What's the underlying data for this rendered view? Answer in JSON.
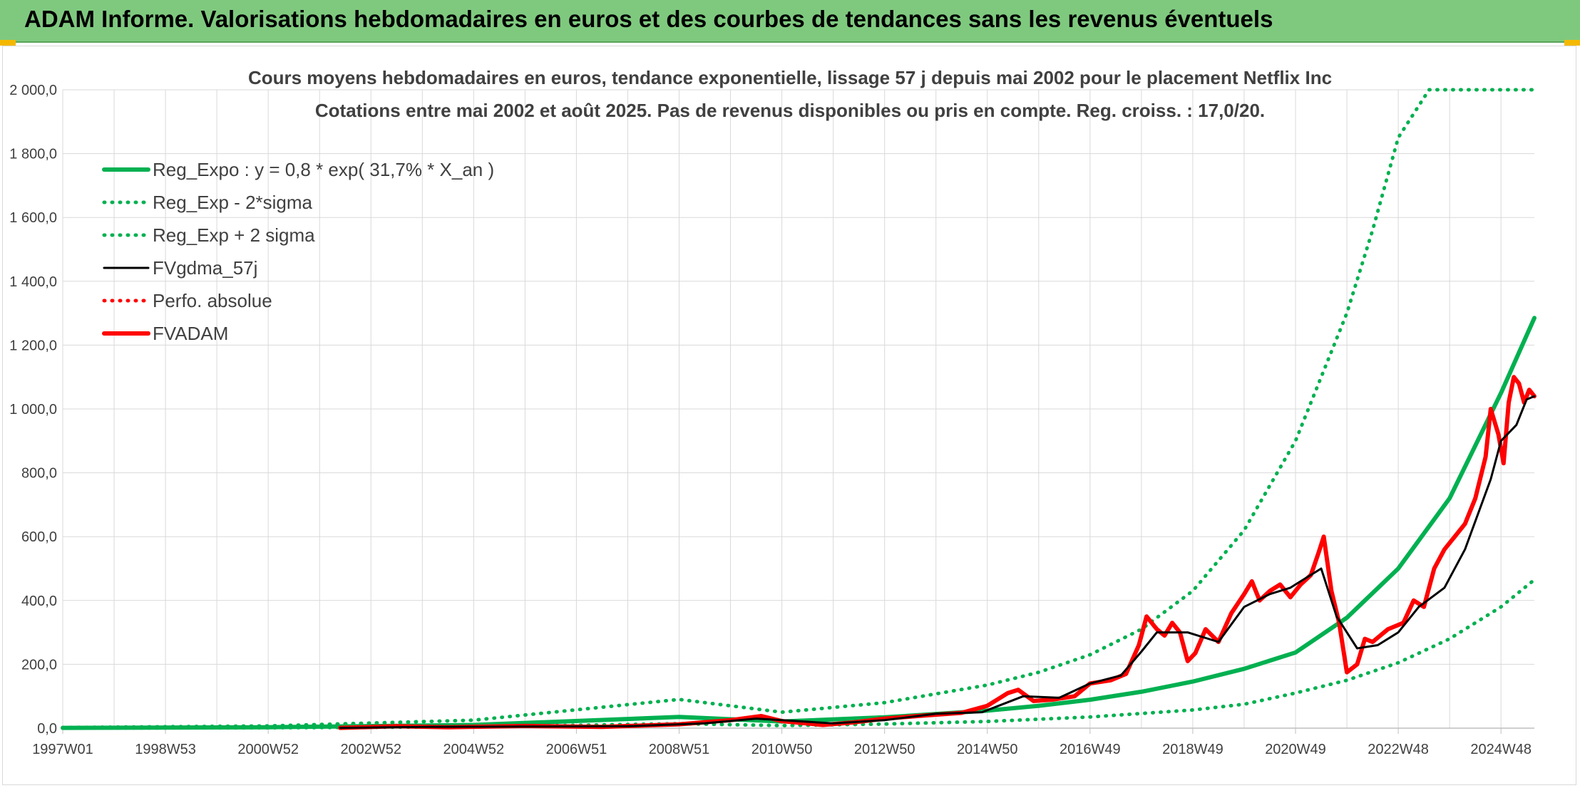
{
  "banner": {
    "title": "ADAM Informe. Valorisations hebdomadaires en euros et des courbes de tendances sans les revenus éventuels"
  },
  "colors": {
    "banner_bg": "#7fc97f",
    "trend": "#00b050",
    "smooth": "#000000",
    "price": "#ff0000",
    "grid": "#d9d9d9",
    "text": "#404040"
  },
  "chart_data": {
    "type": "line",
    "title_lines": [
      "Cours moyens hebdomadaires en euros, tendance exponentielle, lissage 57 j depuis mai 2002 pour le placement Netflix Inc",
      "Cotations entre mai 2002 et août 2025. Pas de revenus disponibles ou pris en compte. Reg. croiss. : 17,0/20."
    ],
    "ylim": [
      0,
      2000
    ],
    "xlim": [
      1997.0,
      2025.65
    ],
    "grid": true,
    "legend_position": "top-left",
    "y_ticks": [
      0,
      200,
      400,
      600,
      800,
      1000,
      1200,
      1400,
      1600,
      1800,
      2000
    ],
    "y_tick_labels": [
      "0,0",
      "200,0",
      "400,0",
      "600,0",
      "800,0",
      "1 000,0",
      "1 200,0",
      "1 400,0",
      "1 600,0",
      "1 800,0",
      "2 000,0"
    ],
    "x_ticks": [
      1997.0,
      1999.0,
      2001.0,
      2003.0,
      2005.0,
      2007.0,
      2009.0,
      2011.0,
      2013.0,
      2015.0,
      2017.0,
      2019.0,
      2021.0,
      2023.0,
      2025.0
    ],
    "x_tick_labels": [
      "1997W01",
      "1998W53",
      "2000W52",
      "2002W52",
      "2004W52",
      "2006W51",
      "2008W51",
      "2010W50",
      "2012W50",
      "2014W50",
      "2016W49",
      "2018W49",
      "2020W49",
      "2022W48",
      "2024W48"
    ],
    "series": [
      {
        "name": "Reg_Expo : y = 0,8 * exp( 31,7% *  X_an )",
        "style": "solid-thick",
        "color": "#00b050",
        "x": [
          1997.0,
          2001.0,
          2005.0,
          2009.0,
          2011.0,
          2013.0,
          2015.0,
          2016.0,
          2017.0,
          2018.0,
          2019.0,
          2020.0,
          2021.0,
          2022.0,
          2023.0,
          2024.0,
          2025.0,
          2025.65
        ],
        "y": [
          0.8,
          2.9,
          10,
          35,
          21,
          34,
          55,
          70,
          89,
          114,
          146,
          186,
          237,
          346,
          500,
          720,
          1050,
          1285
        ]
      },
      {
        "name": "Reg_Exp - 2*sigma",
        "style": "dotted",
        "color": "#00b050",
        "x": [
          1997.0,
          2001.0,
          2005.0,
          2009.0,
          2011.0,
          2013.0,
          2015.0,
          2017.0,
          2019.0,
          2020.0,
          2021.0,
          2022.0,
          2023.0,
          2024.0,
          2025.0,
          2025.65
        ],
        "y": [
          0.3,
          1.1,
          4,
          14,
          8,
          13,
          21,
          35,
          57,
          75,
          110,
          150,
          205,
          280,
          380,
          465
        ]
      },
      {
        "name": "Reg_Exp + 2 sigma",
        "style": "dotted",
        "color": "#00b050",
        "x": [
          1997.0,
          2001.0,
          2005.0,
          2009.0,
          2011.0,
          2013.0,
          2015.0,
          2016.0,
          2017.0,
          2018.0,
          2019.0,
          2020.0,
          2021.0,
          2022.0,
          2022.5,
          2023.0,
          2023.6,
          2024.0,
          2025.65
        ],
        "y": [
          2,
          7,
          25,
          90,
          50,
          80,
          135,
          175,
          230,
          310,
          430,
          620,
          900,
          1300,
          1560,
          1850,
          2000,
          2000,
          2000
        ]
      },
      {
        "name": "FVgdma_57j",
        "style": "solid",
        "color": "#000000",
        "x": [
          2002.4,
          2004.0,
          2006.0,
          2008.0,
          2009.5,
          2010.5,
          2011.0,
          2012.0,
          2013.0,
          2014.0,
          2014.9,
          2015.7,
          2016.4,
          2017.0,
          2017.6,
          2018.0,
          2018.3,
          2018.9,
          2019.5,
          2020.0,
          2020.5,
          2020.9,
          2021.2,
          2021.5,
          2021.8,
          2022.2,
          2022.6,
          2023.0,
          2023.4,
          2023.9,
          2024.3,
          2024.8,
          2025.0,
          2025.3,
          2025.5,
          2025.65
        ],
        "y": [
          1,
          4,
          5,
          6,
          15,
          30,
          25,
          15,
          25,
          45,
          50,
          100,
          95,
          140,
          165,
          240,
          300,
          300,
          270,
          380,
          420,
          440,
          470,
          500,
          350,
          250,
          260,
          300,
          380,
          440,
          560,
          780,
          900,
          950,
          1030,
          1040
        ]
      },
      {
        "name": "Perfo. absolue",
        "style": "dotted",
        "color": "#ff0000",
        "x": [],
        "y": []
      },
      {
        "name": "FVADAM",
        "style": "solid-thick",
        "color": "#ff0000",
        "x": [
          2002.4,
          2003.5,
          2004.5,
          2006.0,
          2007.5,
          2009.0,
          2010.0,
          2010.6,
          2011.0,
          2011.8,
          2012.4,
          2013.0,
          2013.8,
          2014.5,
          2015.0,
          2015.4,
          2015.6,
          2015.9,
          2016.3,
          2016.7,
          2017.0,
          2017.4,
          2017.7,
          2017.95,
          2018.1,
          2018.3,
          2018.45,
          2018.6,
          2018.75,
          2018.9,
          2019.05,
          2019.25,
          2019.5,
          2019.75,
          2020.0,
          2020.15,
          2020.3,
          2020.5,
          2020.7,
          2020.9,
          2021.1,
          2021.3,
          2021.45,
          2021.55,
          2021.7,
          2021.85,
          2022.0,
          2022.2,
          2022.35,
          2022.5,
          2022.8,
          2023.1,
          2023.3,
          2023.5,
          2023.7,
          2023.9,
          2024.1,
          2024.3,
          2024.5,
          2024.7,
          2024.8,
          2024.95,
          2025.05,
          2025.15,
          2025.25,
          2025.35,
          2025.45,
          2025.55,
          2025.65
        ],
        "y": [
          1,
          6,
          3,
          7,
          4,
          12,
          25,
          38,
          22,
          10,
          18,
          30,
          40,
          48,
          70,
          110,
          120,
          85,
          90,
          100,
          140,
          150,
          170,
          260,
          350,
          310,
          290,
          330,
          300,
          210,
          235,
          310,
          270,
          360,
          420,
          460,
          400,
          430,
          450,
          410,
          450,
          480,
          550,
          600,
          430,
          330,
          175,
          200,
          280,
          270,
          310,
          330,
          400,
          380,
          500,
          560,
          600,
          640,
          720,
          850,
          1000,
          920,
          830,
          1020,
          1100,
          1080,
          1020,
          1060,
          1040
        ]
      }
    ]
  }
}
